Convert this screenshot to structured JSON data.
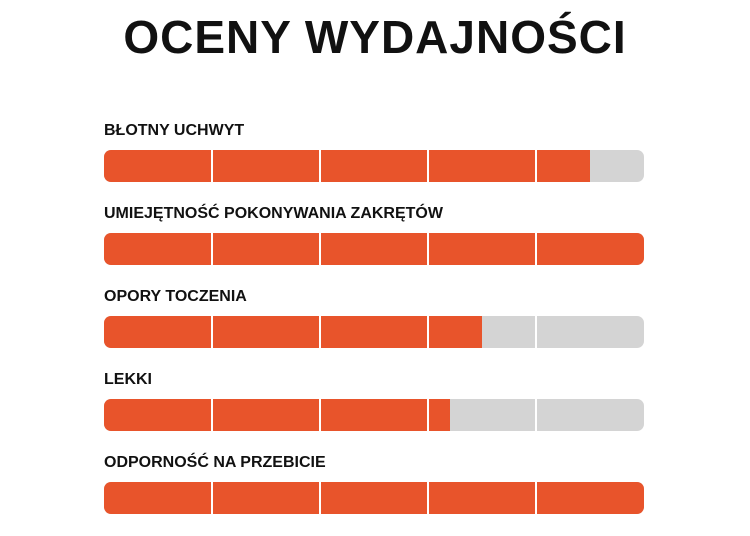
{
  "title": "OCENY WYDAJNOŚCI",
  "colors": {
    "fill": "#e8542b",
    "empty": "#d4d4d4",
    "divider": "#ffffff"
  },
  "segments": 5,
  "ratings": [
    {
      "label": "BŁOTNY UCHWYT",
      "value": 0.9
    },
    {
      "label": "UMIEJĘTNOŚĆ POKONYWANIA ZAKRĘTÓW",
      "value": 1.0
    },
    {
      "label": "OPORY TOCZENIA",
      "value": 0.7
    },
    {
      "label": "LEKKI",
      "value": 0.64
    },
    {
      "label": "ODPORNOŚĆ NA PRZEBICIE",
      "value": 1.0
    }
  ]
}
